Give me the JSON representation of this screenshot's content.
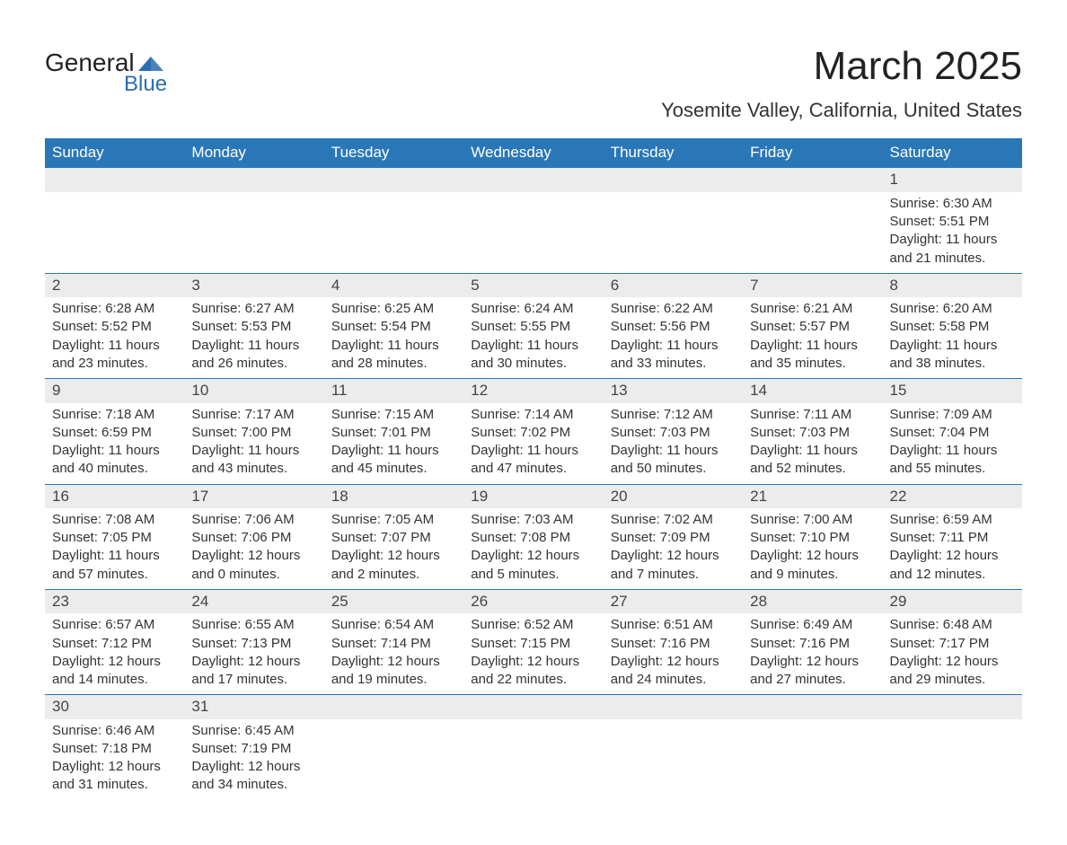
{
  "brand": {
    "word1": "General",
    "word2": "Blue",
    "logo_color": "#2a6db0"
  },
  "title": "March 2025",
  "location": "Yosemite Valley, California, United States",
  "colors": {
    "header_bg": "#2a77b8",
    "header_text": "#ffffff",
    "daynum_bg": "#ececec",
    "border": "#2a77b8",
    "body_text": "#333333"
  },
  "weekdays": [
    "Sunday",
    "Monday",
    "Tuesday",
    "Wednesday",
    "Thursday",
    "Friday",
    "Saturday"
  ],
  "weeks": [
    [
      null,
      null,
      null,
      null,
      null,
      null,
      {
        "n": "1",
        "sr": "Sunrise: 6:30 AM",
        "ss": "Sunset: 5:51 PM",
        "d1": "Daylight: 11 hours",
        "d2": "and 21 minutes."
      }
    ],
    [
      {
        "n": "2",
        "sr": "Sunrise: 6:28 AM",
        "ss": "Sunset: 5:52 PM",
        "d1": "Daylight: 11 hours",
        "d2": "and 23 minutes."
      },
      {
        "n": "3",
        "sr": "Sunrise: 6:27 AM",
        "ss": "Sunset: 5:53 PM",
        "d1": "Daylight: 11 hours",
        "d2": "and 26 minutes."
      },
      {
        "n": "4",
        "sr": "Sunrise: 6:25 AM",
        "ss": "Sunset: 5:54 PM",
        "d1": "Daylight: 11 hours",
        "d2": "and 28 minutes."
      },
      {
        "n": "5",
        "sr": "Sunrise: 6:24 AM",
        "ss": "Sunset: 5:55 PM",
        "d1": "Daylight: 11 hours",
        "d2": "and 30 minutes."
      },
      {
        "n": "6",
        "sr": "Sunrise: 6:22 AM",
        "ss": "Sunset: 5:56 PM",
        "d1": "Daylight: 11 hours",
        "d2": "and 33 minutes."
      },
      {
        "n": "7",
        "sr": "Sunrise: 6:21 AM",
        "ss": "Sunset: 5:57 PM",
        "d1": "Daylight: 11 hours",
        "d2": "and 35 minutes."
      },
      {
        "n": "8",
        "sr": "Sunrise: 6:20 AM",
        "ss": "Sunset: 5:58 PM",
        "d1": "Daylight: 11 hours",
        "d2": "and 38 minutes."
      }
    ],
    [
      {
        "n": "9",
        "sr": "Sunrise: 7:18 AM",
        "ss": "Sunset: 6:59 PM",
        "d1": "Daylight: 11 hours",
        "d2": "and 40 minutes."
      },
      {
        "n": "10",
        "sr": "Sunrise: 7:17 AM",
        "ss": "Sunset: 7:00 PM",
        "d1": "Daylight: 11 hours",
        "d2": "and 43 minutes."
      },
      {
        "n": "11",
        "sr": "Sunrise: 7:15 AM",
        "ss": "Sunset: 7:01 PM",
        "d1": "Daylight: 11 hours",
        "d2": "and 45 minutes."
      },
      {
        "n": "12",
        "sr": "Sunrise: 7:14 AM",
        "ss": "Sunset: 7:02 PM",
        "d1": "Daylight: 11 hours",
        "d2": "and 47 minutes."
      },
      {
        "n": "13",
        "sr": "Sunrise: 7:12 AM",
        "ss": "Sunset: 7:03 PM",
        "d1": "Daylight: 11 hours",
        "d2": "and 50 minutes."
      },
      {
        "n": "14",
        "sr": "Sunrise: 7:11 AM",
        "ss": "Sunset: 7:03 PM",
        "d1": "Daylight: 11 hours",
        "d2": "and 52 minutes."
      },
      {
        "n": "15",
        "sr": "Sunrise: 7:09 AM",
        "ss": "Sunset: 7:04 PM",
        "d1": "Daylight: 11 hours",
        "d2": "and 55 minutes."
      }
    ],
    [
      {
        "n": "16",
        "sr": "Sunrise: 7:08 AM",
        "ss": "Sunset: 7:05 PM",
        "d1": "Daylight: 11 hours",
        "d2": "and 57 minutes."
      },
      {
        "n": "17",
        "sr": "Sunrise: 7:06 AM",
        "ss": "Sunset: 7:06 PM",
        "d1": "Daylight: 12 hours",
        "d2": "and 0 minutes."
      },
      {
        "n": "18",
        "sr": "Sunrise: 7:05 AM",
        "ss": "Sunset: 7:07 PM",
        "d1": "Daylight: 12 hours",
        "d2": "and 2 minutes."
      },
      {
        "n": "19",
        "sr": "Sunrise: 7:03 AM",
        "ss": "Sunset: 7:08 PM",
        "d1": "Daylight: 12 hours",
        "d2": "and 5 minutes."
      },
      {
        "n": "20",
        "sr": "Sunrise: 7:02 AM",
        "ss": "Sunset: 7:09 PM",
        "d1": "Daylight: 12 hours",
        "d2": "and 7 minutes."
      },
      {
        "n": "21",
        "sr": "Sunrise: 7:00 AM",
        "ss": "Sunset: 7:10 PM",
        "d1": "Daylight: 12 hours",
        "d2": "and 9 minutes."
      },
      {
        "n": "22",
        "sr": "Sunrise: 6:59 AM",
        "ss": "Sunset: 7:11 PM",
        "d1": "Daylight: 12 hours",
        "d2": "and 12 minutes."
      }
    ],
    [
      {
        "n": "23",
        "sr": "Sunrise: 6:57 AM",
        "ss": "Sunset: 7:12 PM",
        "d1": "Daylight: 12 hours",
        "d2": "and 14 minutes."
      },
      {
        "n": "24",
        "sr": "Sunrise: 6:55 AM",
        "ss": "Sunset: 7:13 PM",
        "d1": "Daylight: 12 hours",
        "d2": "and 17 minutes."
      },
      {
        "n": "25",
        "sr": "Sunrise: 6:54 AM",
        "ss": "Sunset: 7:14 PM",
        "d1": "Daylight: 12 hours",
        "d2": "and 19 minutes."
      },
      {
        "n": "26",
        "sr": "Sunrise: 6:52 AM",
        "ss": "Sunset: 7:15 PM",
        "d1": "Daylight: 12 hours",
        "d2": "and 22 minutes."
      },
      {
        "n": "27",
        "sr": "Sunrise: 6:51 AM",
        "ss": "Sunset: 7:16 PM",
        "d1": "Daylight: 12 hours",
        "d2": "and 24 minutes."
      },
      {
        "n": "28",
        "sr": "Sunrise: 6:49 AM",
        "ss": "Sunset: 7:16 PM",
        "d1": "Daylight: 12 hours",
        "d2": "and 27 minutes."
      },
      {
        "n": "29",
        "sr": "Sunrise: 6:48 AM",
        "ss": "Sunset: 7:17 PM",
        "d1": "Daylight: 12 hours",
        "d2": "and 29 minutes."
      }
    ],
    [
      {
        "n": "30",
        "sr": "Sunrise: 6:46 AM",
        "ss": "Sunset: 7:18 PM",
        "d1": "Daylight: 12 hours",
        "d2": "and 31 minutes."
      },
      {
        "n": "31",
        "sr": "Sunrise: 6:45 AM",
        "ss": "Sunset: 7:19 PM",
        "d1": "Daylight: 12 hours",
        "d2": "and 34 minutes."
      },
      null,
      null,
      null,
      null,
      null
    ]
  ]
}
